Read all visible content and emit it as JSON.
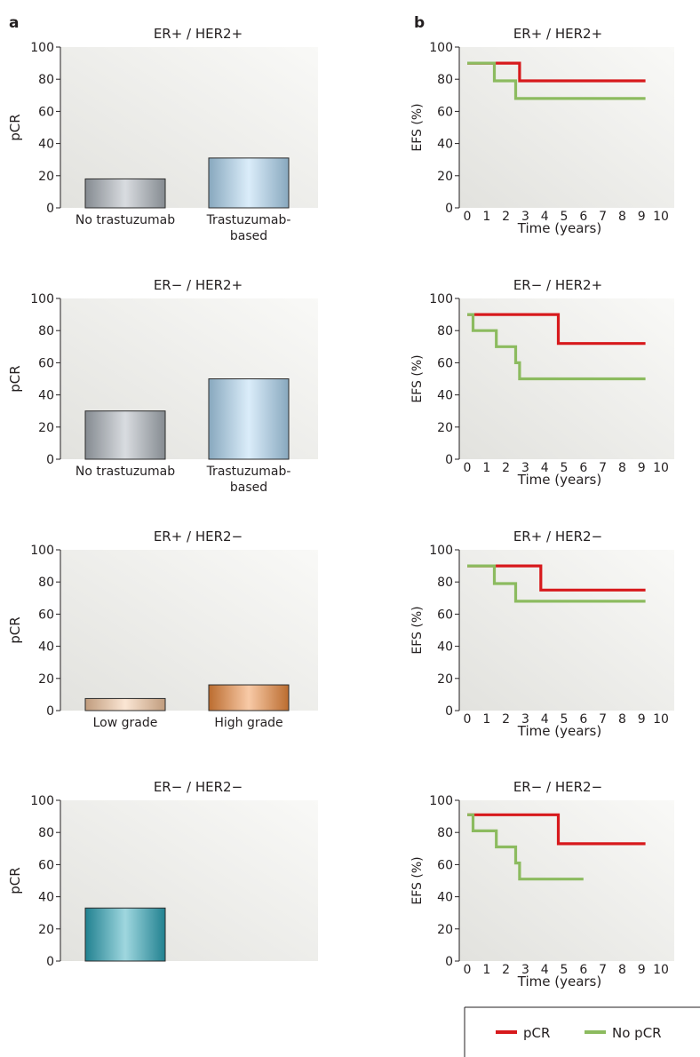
{
  "panel_labels": {
    "a": "a",
    "b": "b"
  },
  "colors": {
    "pcr": "#d7191c",
    "no_pcr": "#8cbb5f",
    "bar_gray": "#aab2ba",
    "bar_blue": "#aed8f3",
    "bar_light_orange": "#f6c8a0",
    "bar_dark_orange": "#f08a3c",
    "bar_teal": "#2aa6b8",
    "axis": "#231f20",
    "plot_bg": "#ebebe8"
  },
  "legend": {
    "pcr_label": "pCR",
    "no_pcr_label": "No pCR"
  },
  "chart_data": [
    {
      "type": "bar",
      "panel": "a",
      "title": "ER+ / HER2+",
      "ylabel": "pCR",
      "ylim": [
        0,
        100
      ],
      "yticks": [
        0,
        20,
        40,
        60,
        80,
        100
      ],
      "categories": [
        [
          "No trastuzumab"
        ],
        [
          "Trastuzumab-",
          "based"
        ]
      ],
      "values": [
        18,
        31
      ],
      "bar_colors": [
        "bar_gray",
        "bar_blue"
      ]
    },
    {
      "type": "line",
      "panel": "b",
      "title": "ER+ / HER2+",
      "ylabel": "EFS (%)",
      "xlabel": "Time (years)",
      "xlim": [
        0,
        10
      ],
      "ylim": [
        0,
        100
      ],
      "xticks": [
        0,
        1,
        2,
        3,
        4,
        5,
        6,
        7,
        8,
        9,
        10
      ],
      "yticks": [
        0,
        20,
        40,
        60,
        80,
        100
      ],
      "series": [
        {
          "name": "pCR",
          "color_key": "pcr",
          "x": [
            0,
            2.7,
            2.7,
            9.2
          ],
          "y": [
            90,
            90,
            79,
            79
          ]
        },
        {
          "name": "No pCR",
          "color_key": "no_pcr",
          "x": [
            0,
            1.4,
            1.4,
            2.5,
            2.5,
            9.2
          ],
          "y": [
            90,
            90,
            79,
            79,
            68,
            68
          ]
        }
      ]
    },
    {
      "type": "bar",
      "panel": "a",
      "title": "ER− / HER2+",
      "ylabel": "pCR",
      "ylim": [
        0,
        100
      ],
      "yticks": [
        0,
        20,
        40,
        60,
        80,
        100
      ],
      "categories": [
        [
          "No trastuzumab"
        ],
        [
          "Trastuzumab-",
          "based"
        ]
      ],
      "values": [
        30,
        50
      ],
      "bar_colors": [
        "bar_gray",
        "bar_blue"
      ]
    },
    {
      "type": "line",
      "panel": "b",
      "title": "ER− / HER2+",
      "ylabel": "EFS (%)",
      "xlabel": "Time (years)",
      "xlim": [
        0,
        10
      ],
      "ylim": [
        0,
        100
      ],
      "xticks": [
        0,
        1,
        2,
        3,
        4,
        5,
        6,
        7,
        8,
        9,
        10
      ],
      "yticks": [
        0,
        20,
        40,
        60,
        80,
        100
      ],
      "series": [
        {
          "name": "pCR",
          "color_key": "pcr",
          "x": [
            0,
            4.7,
            4.7,
            9.2
          ],
          "y": [
            90,
            90,
            72,
            72
          ]
        },
        {
          "name": "No pCR",
          "color_key": "no_pcr",
          "x": [
            0,
            0.3,
            0.3,
            1.5,
            1.5,
            2.5,
            2.5,
            2.7,
            2.7,
            9.2
          ],
          "y": [
            90,
            90,
            80,
            80,
            70,
            70,
            60,
            60,
            50,
            50
          ]
        }
      ]
    },
    {
      "type": "bar",
      "panel": "a",
      "title": "ER+ / HER2−",
      "ylabel": "pCR",
      "ylim": [
        0,
        100
      ],
      "yticks": [
        0,
        20,
        40,
        60,
        80,
        100
      ],
      "categories": [
        [
          "Low grade"
        ],
        [
          "High grade"
        ]
      ],
      "values": [
        7.5,
        16
      ],
      "bar_colors": [
        "bar_light_orange",
        "bar_dark_orange"
      ]
    },
    {
      "type": "line",
      "panel": "b",
      "title": "ER+ / HER2−",
      "ylabel": "EFS (%)",
      "xlabel": "Time (years)",
      "xlim": [
        0,
        10
      ],
      "ylim": [
        0,
        100
      ],
      "xticks": [
        0,
        1,
        2,
        3,
        4,
        5,
        6,
        7,
        8,
        9,
        10
      ],
      "yticks": [
        0,
        20,
        40,
        60,
        80,
        100
      ],
      "series": [
        {
          "name": "pCR",
          "color_key": "pcr",
          "x": [
            0,
            3.8,
            3.8,
            9.2
          ],
          "y": [
            90,
            90,
            75,
            75
          ]
        },
        {
          "name": "No pCR",
          "color_key": "no_pcr",
          "x": [
            0,
            1.4,
            1.4,
            2.5,
            2.5,
            9.2
          ],
          "y": [
            90,
            90,
            79,
            79,
            68,
            68
          ]
        }
      ]
    },
    {
      "type": "bar",
      "panel": "a",
      "title": "ER− / HER2−",
      "ylabel": "pCR",
      "ylim": [
        0,
        100
      ],
      "yticks": [
        0,
        20,
        40,
        60,
        80,
        100
      ],
      "categories": [
        [
          ""
        ],
        [
          ""
        ]
      ],
      "values": [
        33,
        null
      ],
      "bar_colors": [
        "bar_teal",
        "bar_teal"
      ]
    },
    {
      "type": "line",
      "panel": "b",
      "title": "ER− / HER2−",
      "ylabel": "EFS (%)",
      "xlabel": "Time (years)",
      "xlim": [
        0,
        10
      ],
      "ylim": [
        0,
        100
      ],
      "xticks": [
        0,
        1,
        2,
        3,
        4,
        5,
        6,
        7,
        8,
        9,
        10
      ],
      "yticks": [
        0,
        20,
        40,
        60,
        80,
        100
      ],
      "series": [
        {
          "name": "pCR",
          "color_key": "pcr",
          "x": [
            0,
            4.7,
            4.7,
            9.2
          ],
          "y": [
            91,
            91,
            73,
            73
          ]
        },
        {
          "name": "No pCR",
          "color_key": "no_pcr",
          "x": [
            0,
            0.3,
            0.3,
            1.5,
            1.5,
            2.5,
            2.5,
            2.7,
            2.7,
            6.0
          ],
          "y": [
            91,
            91,
            81,
            81,
            71,
            71,
            61,
            61,
            51,
            51
          ]
        }
      ]
    }
  ]
}
